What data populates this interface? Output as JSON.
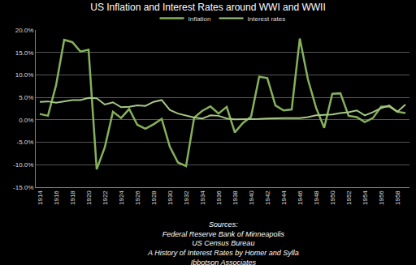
{
  "chart_data": {
    "type": "line",
    "title": "US Inflation and Interest Rates around WWI and WWII",
    "categories": [
      "1914",
      null,
      "1916",
      null,
      "1918",
      null,
      "1920",
      null,
      "1922",
      null,
      "1924",
      null,
      "1926",
      null,
      "1928",
      null,
      "1930",
      null,
      "1932",
      null,
      "1934",
      null,
      "1936",
      null,
      "1938",
      null,
      "1940",
      null,
      "1942",
      null,
      "1944",
      null,
      "1946",
      null,
      "1948",
      null,
      "1950",
      null,
      "1952",
      null,
      "1954",
      null,
      "1956",
      null,
      "1958",
      null
    ],
    "series": [
      {
        "name": "Inflation",
        "color": "#86b05c",
        "values": [
          1.3,
          0.9,
          7.7,
          17.8,
          17.3,
          15.2,
          15.6,
          -11.0,
          -6.1,
          1.8,
          0.4,
          2.4,
          -1.1,
          -2.0,
          -1.0,
          0.2,
          -6.0,
          -9.5,
          -10.3,
          0.5,
          2.0,
          3.0,
          1.4,
          2.9,
          -2.8,
          -0.7,
          0.7,
          9.6,
          9.3,
          3.2,
          2.1,
          2.3,
          18.1,
          9.0,
          2.7,
          -1.8,
          5.8,
          5.9,
          0.9,
          0.6,
          -0.5,
          0.4,
          2.9,
          3.0,
          1.8,
          1.5
        ]
      },
      {
        "name": "Interest rates",
        "color": "#a6c886",
        "values": [
          4.0,
          4.1,
          3.8,
          4.1,
          4.4,
          4.4,
          4.9,
          4.8,
          3.4,
          3.9,
          2.8,
          2.9,
          3.2,
          3.1,
          4.0,
          4.4,
          2.2,
          1.4,
          0.9,
          0.5,
          0.3,
          1.0,
          0.9,
          0.3,
          0.1,
          0.1,
          0.1,
          0.2,
          0.3,
          0.4,
          0.4,
          0.4,
          0.4,
          0.6,
          1.0,
          1.1,
          1.2,
          1.5,
          1.7,
          2.1,
          1.0,
          1.7,
          2.6,
          3.2,
          1.8,
          3.4
        ]
      }
    ],
    "ylim": [
      -15,
      20
    ],
    "yticks": [
      {
        "value": -15,
        "label": "-15.0%"
      },
      {
        "value": -10,
        "label": "-10.0%"
      },
      {
        "value": -5,
        "label": "-5.0%"
      },
      {
        "value": 0,
        "label": "0.0%"
      },
      {
        "value": 5,
        "label": "5.0%"
      },
      {
        "value": 10,
        "label": "10.0%"
      },
      {
        "value": 15,
        "label": "15.0%"
      },
      {
        "value": 20,
        "label": "20.0%"
      }
    ],
    "grid": true,
    "legend": "top",
    "annotations": [
      "Sources:",
      "Federal Reserve Bank of Minneapolis",
      "US Census Bureau",
      "A History of Interest Rates by Homer and Sylla",
      "Ibbotson Associates"
    ]
  }
}
